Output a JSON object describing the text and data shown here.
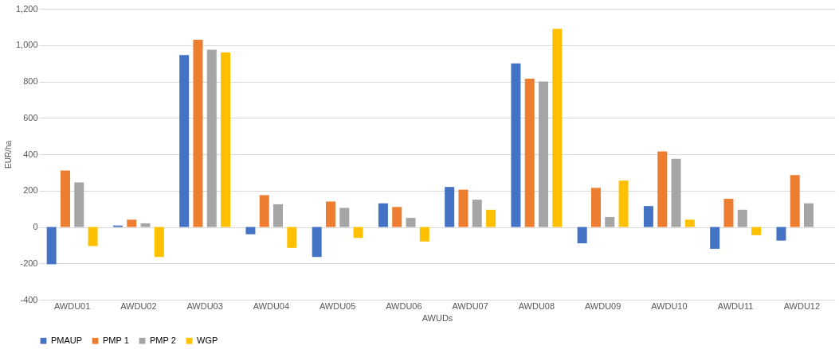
{
  "chart_data": {
    "type": "bar",
    "xlabel": "AWUDs",
    "ylabel": "EUR/ha",
    "categories": [
      "AWDU01",
      "AWDU02",
      "AWDU03",
      "AWDU04",
      "AWDU05",
      "AWDU06",
      "AWDU07",
      "AWDU08",
      "AWDU09",
      "AWDU10",
      "AWDU11",
      "AWDU12"
    ],
    "series": [
      {
        "name": "PMAUP",
        "color": "#4472c4",
        "values": [
          -205,
          8,
          945,
          -40,
          -165,
          130,
          220,
          900,
          -90,
          115,
          -120,
          -75
        ]
      },
      {
        "name": "PMP 1",
        "color": "#ed7d31",
        "values": [
          310,
          40,
          1030,
          175,
          140,
          110,
          205,
          815,
          215,
          415,
          155,
          285
        ]
      },
      {
        "name": "PMP 2",
        "color": "#a5a5a5",
        "values": [
          245,
          20,
          975,
          125,
          105,
          50,
          150,
          800,
          55,
          375,
          95,
          130
        ]
      },
      {
        "name": "WGP",
        "color": "#ffc000",
        "values": [
          -105,
          -165,
          960,
          -115,
          -60,
          -80,
          95,
          1090,
          255,
          40,
          -45,
          null
        ]
      }
    ],
    "ylim": [
      -400,
      1200
    ],
    "yticks": [
      {
        "value": -400,
        "label": "-400"
      },
      {
        "value": -200,
        "label": "-200"
      },
      0,
      200,
      400,
      600,
      800,
      {
        "value": 1000,
        "label": "1,000"
      },
      {
        "value": 1200,
        "label": "1,200"
      }
    ],
    "grid": "y",
    "legend": "bottom"
  }
}
